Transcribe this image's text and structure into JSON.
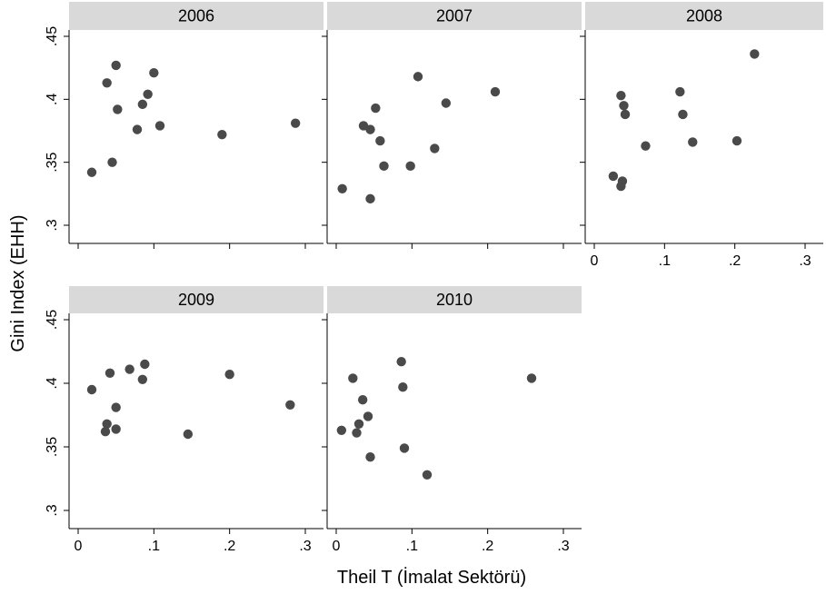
{
  "chart_data": {
    "type": "scatter",
    "xlabel": "Theil T (İmalat Sektörü)",
    "ylabel": "Gini Index (EHH)",
    "xlim": [
      0,
      0.3
    ],
    "ylim": [
      0.3,
      0.45
    ],
    "x_ticks": [
      0,
      0.1,
      0.2,
      0.3
    ],
    "x_tick_labels": [
      "0",
      ".1",
      ".2",
      ".3"
    ],
    "y_ticks": [
      0.3,
      0.35,
      0.4,
      0.45
    ],
    "y_tick_labels": [
      ".3",
      ".35",
      ".4",
      ".45"
    ],
    "grid": false,
    "legend": "none",
    "colors": {
      "point": "#4a4a4a",
      "strip": "#d9d9d9",
      "axis": "#000000"
    },
    "panels": [
      {
        "title": "2006",
        "points": [
          {
            "x": 0.018,
            "y": 0.342
          },
          {
            "x": 0.038,
            "y": 0.413
          },
          {
            "x": 0.045,
            "y": 0.35
          },
          {
            "x": 0.05,
            "y": 0.427
          },
          {
            "x": 0.052,
            "y": 0.392
          },
          {
            "x": 0.078,
            "y": 0.376
          },
          {
            "x": 0.085,
            "y": 0.396
          },
          {
            "x": 0.092,
            "y": 0.404
          },
          {
            "x": 0.1,
            "y": 0.421
          },
          {
            "x": 0.108,
            "y": 0.379
          },
          {
            "x": 0.19,
            "y": 0.372
          },
          {
            "x": 0.287,
            "y": 0.381
          }
        ]
      },
      {
        "title": "2007",
        "points": [
          {
            "x": 0.008,
            "y": 0.329
          },
          {
            "x": 0.036,
            "y": 0.379
          },
          {
            "x": 0.045,
            "y": 0.376
          },
          {
            "x": 0.045,
            "y": 0.321
          },
          {
            "x": 0.052,
            "y": 0.393
          },
          {
            "x": 0.058,
            "y": 0.367
          },
          {
            "x": 0.063,
            "y": 0.347
          },
          {
            "x": 0.098,
            "y": 0.347
          },
          {
            "x": 0.108,
            "y": 0.418
          },
          {
            "x": 0.13,
            "y": 0.361
          },
          {
            "x": 0.145,
            "y": 0.397
          },
          {
            "x": 0.21,
            "y": 0.406
          }
        ]
      },
      {
        "title": "2008",
        "points": [
          {
            "x": 0.027,
            "y": 0.339
          },
          {
            "x": 0.038,
            "y": 0.331
          },
          {
            "x": 0.038,
            "y": 0.403
          },
          {
            "x": 0.04,
            "y": 0.335
          },
          {
            "x": 0.042,
            "y": 0.395
          },
          {
            "x": 0.044,
            "y": 0.388
          },
          {
            "x": 0.073,
            "y": 0.363
          },
          {
            "x": 0.122,
            "y": 0.406
          },
          {
            "x": 0.126,
            "y": 0.388
          },
          {
            "x": 0.14,
            "y": 0.366
          },
          {
            "x": 0.203,
            "y": 0.367
          },
          {
            "x": 0.228,
            "y": 0.436
          }
        ]
      },
      {
        "title": "2009",
        "points": [
          {
            "x": 0.018,
            "y": 0.395
          },
          {
            "x": 0.036,
            "y": 0.362
          },
          {
            "x": 0.038,
            "y": 0.368
          },
          {
            "x": 0.042,
            "y": 0.408
          },
          {
            "x": 0.05,
            "y": 0.381
          },
          {
            "x": 0.05,
            "y": 0.364
          },
          {
            "x": 0.068,
            "y": 0.411
          },
          {
            "x": 0.085,
            "y": 0.403
          },
          {
            "x": 0.088,
            "y": 0.415
          },
          {
            "x": 0.145,
            "y": 0.36
          },
          {
            "x": 0.2,
            "y": 0.407
          },
          {
            "x": 0.28,
            "y": 0.383
          }
        ]
      },
      {
        "title": "2010",
        "points": [
          {
            "x": 0.007,
            "y": 0.363
          },
          {
            "x": 0.022,
            "y": 0.404
          },
          {
            "x": 0.027,
            "y": 0.361
          },
          {
            "x": 0.03,
            "y": 0.368
          },
          {
            "x": 0.035,
            "y": 0.387
          },
          {
            "x": 0.042,
            "y": 0.374
          },
          {
            "x": 0.045,
            "y": 0.342
          },
          {
            "x": 0.086,
            "y": 0.417
          },
          {
            "x": 0.088,
            "y": 0.397
          },
          {
            "x": 0.09,
            "y": 0.349
          },
          {
            "x": 0.12,
            "y": 0.328
          },
          {
            "x": 0.258,
            "y": 0.404
          }
        ]
      }
    ]
  }
}
